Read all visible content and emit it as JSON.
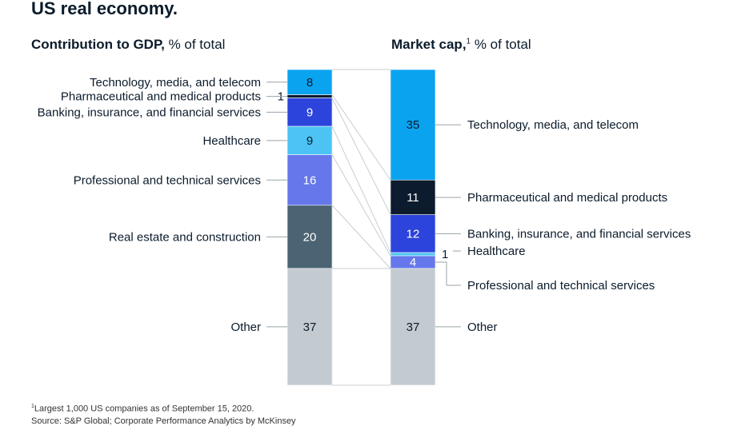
{
  "title": "US real economy.",
  "left_panel": {
    "title_bold": "Contribution to GDP,",
    "title_rest": " % of total"
  },
  "right_panel": {
    "title_bold": "Market cap,",
    "title_sup": "1",
    "title_rest": " % of total"
  },
  "colors": {
    "Technology, media, and telecom": "#0aa3f0",
    "Pharmaceutical and medical products": "#0c1b2e",
    "Banking, insurance, and financial services": "#2c44db",
    "Healthcare": "#4cc3f4",
    "Professional and technical services": "#6577ea",
    "Real estate and construction": "#4b6373",
    "Other": "#c4cbd0"
  },
  "chart_data": {
    "type": "bar",
    "stacked": true,
    "unit": "% of total",
    "categories": [
      "Contribution to GDP",
      "Market cap"
    ],
    "series": [
      {
        "name": "Technology, media, and telecom",
        "values": [
          8,
          35
        ]
      },
      {
        "name": "Pharmaceutical and medical products",
        "values": [
          1,
          11
        ]
      },
      {
        "name": "Banking, insurance, and financial services",
        "values": [
          9,
          12
        ]
      },
      {
        "name": "Healthcare",
        "values": [
          9,
          1
        ]
      },
      {
        "name": "Professional and technical services",
        "values": [
          16,
          4
        ]
      },
      {
        "name": "Real estate and construction",
        "values": [
          20,
          0
        ]
      },
      {
        "name": "Other",
        "values": [
          37,
          37
        ]
      }
    ]
  },
  "footnote": {
    "marker": "1",
    "text": "Largest 1,000 US companies as of September 15, 2020."
  },
  "source": "Source: S&P Global; Corporate Performance Analytics by McKinsey"
}
